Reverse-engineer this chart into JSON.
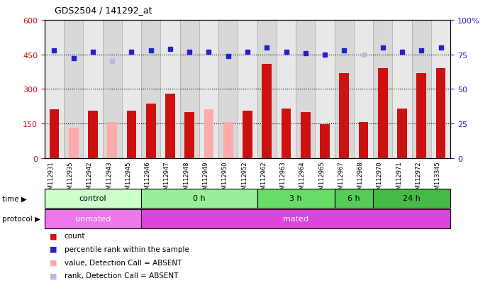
{
  "title": "GDS2504 / 141292_at",
  "samples": [
    "GSM112931",
    "GSM112935",
    "GSM112942",
    "GSM112943",
    "GSM112945",
    "GSM112946",
    "GSM112947",
    "GSM112948",
    "GSM112949",
    "GSM112950",
    "GSM112952",
    "GSM112962",
    "GSM112963",
    "GSM112964",
    "GSM112965",
    "GSM112967",
    "GSM112968",
    "GSM112970",
    "GSM112971",
    "GSM112972",
    "GSM113345"
  ],
  "bar_values": [
    210,
    130,
    205,
    155,
    205,
    235,
    280,
    200,
    210,
    155,
    205,
    410,
    215,
    200,
    148,
    370,
    155,
    390,
    215,
    370,
    390
  ],
  "bar_absent": [
    false,
    true,
    false,
    true,
    false,
    false,
    false,
    false,
    true,
    true,
    false,
    false,
    false,
    false,
    false,
    false,
    false,
    false,
    false,
    false,
    false
  ],
  "dot_values_pct": [
    78,
    72,
    77,
    70,
    77,
    78,
    79,
    77,
    77,
    74,
    77,
    80,
    77,
    76,
    75,
    78,
    75,
    80,
    77,
    78,
    80
  ],
  "dot_absent": [
    false,
    false,
    false,
    true,
    false,
    false,
    false,
    false,
    false,
    false,
    false,
    false,
    false,
    false,
    false,
    false,
    true,
    false,
    false,
    false,
    false
  ],
  "ylim_left": [
    0,
    600
  ],
  "ylim_right": [
    0,
    100
  ],
  "yticks_left": [
    0,
    150,
    300,
    450,
    600
  ],
  "yticks_right": [
    0,
    25,
    50,
    75,
    100
  ],
  "ytick_labels_left": [
    "0",
    "150",
    "300",
    "450",
    "600"
  ],
  "ytick_labels_right": [
    "0",
    "25",
    "50",
    "75",
    "100%"
  ],
  "bar_color": "#cc1111",
  "bar_absent_color": "#ffaaaa",
  "dot_color": "#2222cc",
  "dot_absent_color": "#bbbbdd",
  "grid_lines": [
    150,
    300,
    450
  ],
  "bg_odd_color": "#e8e8e8",
  "bg_even_color": "#d8d8d8",
  "time_groups": [
    {
      "label": "control",
      "start": 0,
      "end": 5,
      "color": "#ccffcc"
    },
    {
      "label": "0 h",
      "start": 5,
      "end": 11,
      "color": "#99ee99"
    },
    {
      "label": "3 h",
      "start": 11,
      "end": 15,
      "color": "#66dd66"
    },
    {
      "label": "6 h",
      "start": 15,
      "end": 17,
      "color": "#55cc55"
    },
    {
      "label": "24 h",
      "start": 17,
      "end": 21,
      "color": "#44bb44"
    }
  ],
  "protocol_groups": [
    {
      "label": "unmated",
      "start": 0,
      "end": 5,
      "color": "#ee77ee"
    },
    {
      "label": "mated",
      "start": 5,
      "end": 21,
      "color": "#dd44dd"
    }
  ],
  "legend_items": [
    {
      "label": "count",
      "color": "#cc1111"
    },
    {
      "label": "percentile rank within the sample",
      "color": "#2222cc"
    },
    {
      "label": "value, Detection Call = ABSENT",
      "color": "#ffaaaa"
    },
    {
      "label": "rank, Detection Call = ABSENT",
      "color": "#bbbbdd"
    }
  ]
}
